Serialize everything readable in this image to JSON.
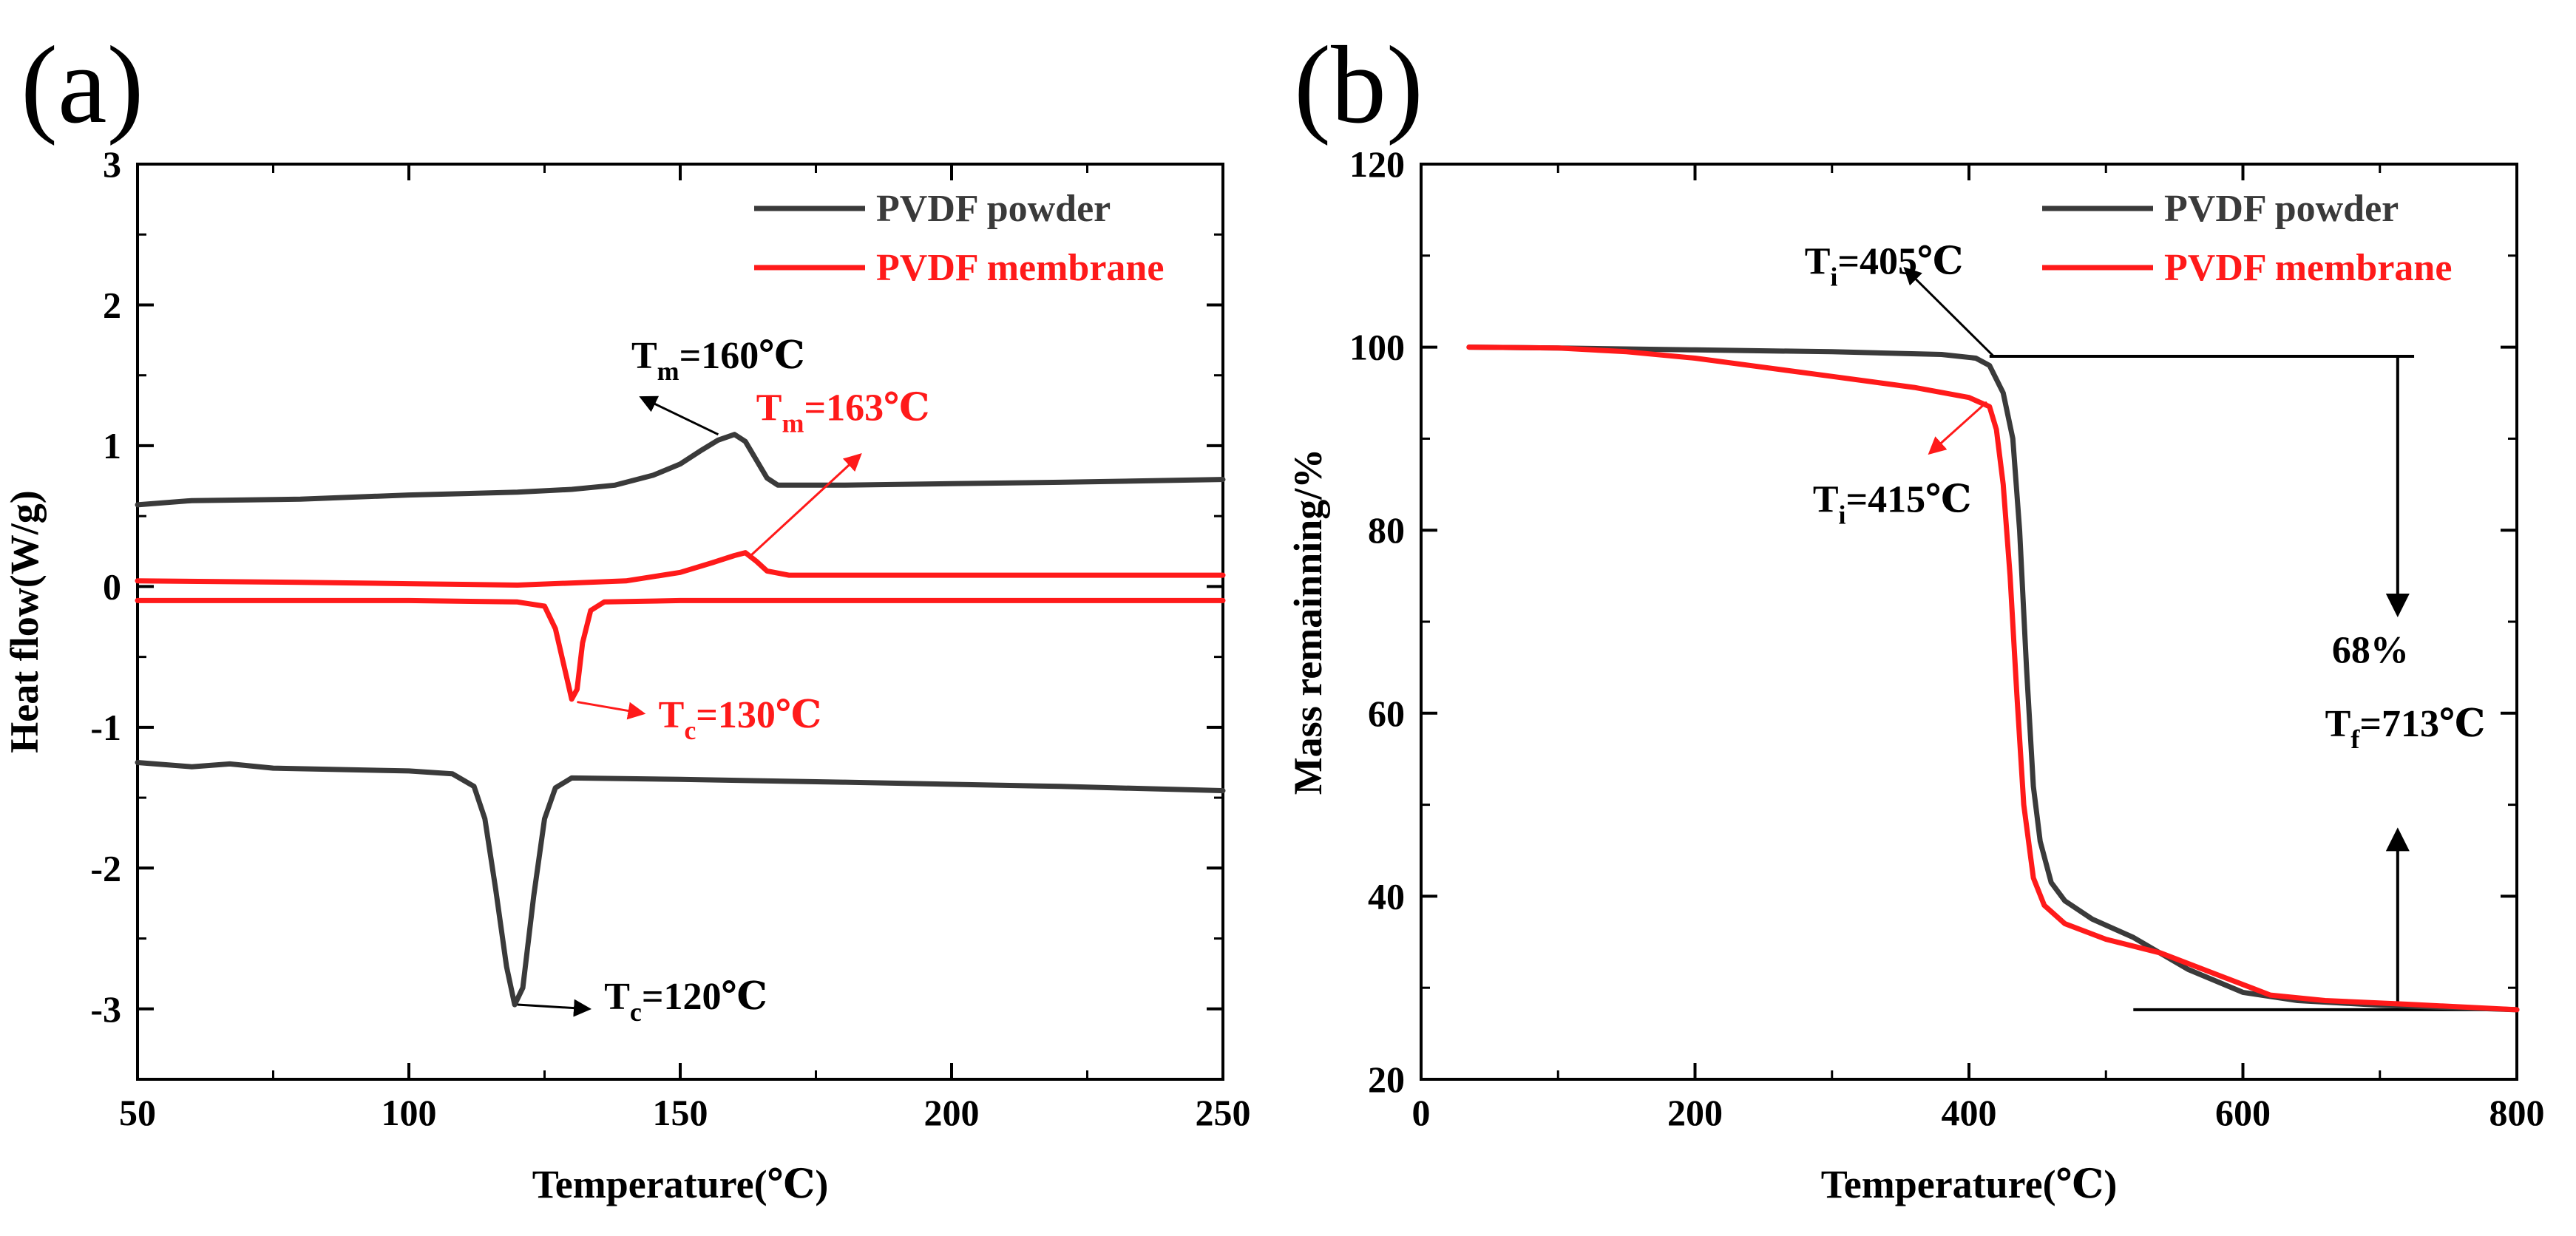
{
  "figure": {
    "panel_a_label": "(a)",
    "panel_b_label": "(b)"
  },
  "colors": {
    "powder": "#3a3a3a",
    "membrane": "#ff1a1a",
    "axis": "#000000",
    "annotation": "#000000"
  },
  "chart_data": [
    {
      "id": "dsc",
      "panel": "(a)",
      "type": "line",
      "xlabel": "Temperature(℃)",
      "ylabel": "Heat flow(W/g)",
      "xlim": [
        50,
        250
      ],
      "ylim": [
        -3.5,
        3
      ],
      "xticks": [
        50,
        100,
        150,
        200,
        250
      ],
      "xtick_labels": [
        "50",
        "100",
        "150",
        "200",
        "250"
      ],
      "yticks": [
        -3,
        -2,
        -1,
        0,
        1,
        2,
        3
      ],
      "ytick_labels": [
        "-3",
        "-2",
        "-1",
        "0",
        "1",
        "2",
        "3"
      ],
      "legend": {
        "position": "top-right",
        "entries": [
          "PVDF powder",
          "PVDF membrane"
        ]
      },
      "series": [
        {
          "name": "PVDF powder",
          "curve": "heating",
          "color_key": "powder",
          "points": [
            [
              50,
              0.58
            ],
            [
              60,
              0.61
            ],
            [
              80,
              0.62
            ],
            [
              100,
              0.65
            ],
            [
              120,
              0.67
            ],
            [
              130,
              0.69
            ],
            [
              138,
              0.72
            ],
            [
              145,
              0.79
            ],
            [
              150,
              0.87
            ],
            [
              154,
              0.97
            ],
            [
              157,
              1.04
            ],
            [
              160,
              1.08
            ],
            [
              162,
              1.03
            ],
            [
              164,
              0.9
            ],
            [
              166,
              0.77
            ],
            [
              168,
              0.72
            ],
            [
              180,
              0.72
            ],
            [
              200,
              0.73
            ],
            [
              220,
              0.74
            ],
            [
              250,
              0.76
            ]
          ]
        },
        {
          "name": "PVDF powder",
          "curve": "cooling",
          "color_key": "powder",
          "points": [
            [
              50,
              -1.25
            ],
            [
              60,
              -1.28
            ],
            [
              67,
              -1.26
            ],
            [
              75,
              -1.29
            ],
            [
              100,
              -1.31
            ],
            [
              108,
              -1.33
            ],
            [
              112,
              -1.42
            ],
            [
              114,
              -1.65
            ],
            [
              116,
              -2.15
            ],
            [
              118,
              -2.7
            ],
            [
              119.5,
              -2.97
            ],
            [
              121,
              -2.85
            ],
            [
              123,
              -2.2
            ],
            [
              125,
              -1.65
            ],
            [
              127,
              -1.43
            ],
            [
              130,
              -1.36
            ],
            [
              150,
              -1.37
            ],
            [
              180,
              -1.39
            ],
            [
              220,
              -1.42
            ],
            [
              250,
              -1.45
            ]
          ]
        },
        {
          "name": "PVDF membrane",
          "curve": "heating",
          "color_key": "membrane",
          "points": [
            [
              50,
              0.04
            ],
            [
              80,
              0.03
            ],
            [
              100,
              0.02
            ],
            [
              120,
              0.01
            ],
            [
              140,
              0.04
            ],
            [
              150,
              0.1
            ],
            [
              156,
              0.17
            ],
            [
              160,
              0.22
            ],
            [
              162,
              0.24
            ],
            [
              164,
              0.18
            ],
            [
              166,
              0.11
            ],
            [
              170,
              0.08
            ],
            [
              200,
              0.08
            ],
            [
              250,
              0.08
            ]
          ]
        },
        {
          "name": "PVDF membrane",
          "curve": "cooling",
          "color_key": "membrane",
          "points": [
            [
              50,
              -0.1
            ],
            [
              100,
              -0.1
            ],
            [
              120,
              -0.11
            ],
            [
              125,
              -0.14
            ],
            [
              127,
              -0.3
            ],
            [
              128.5,
              -0.55
            ],
            [
              130,
              -0.8
            ],
            [
              131,
              -0.73
            ],
            [
              132,
              -0.4
            ],
            [
              133.5,
              -0.17
            ],
            [
              136,
              -0.11
            ],
            [
              150,
              -0.1
            ],
            [
              200,
              -0.1
            ],
            [
              250,
              -0.1
            ]
          ]
        }
      ],
      "annotations": [
        {
          "sym": "T",
          "sub": "m",
          "val": "=160℃",
          "color_key": "annotation",
          "anchor": [
            141,
            1.55
          ],
          "arrow": [
            [
              157,
              1.08
            ],
            [
              143,
              1.34
            ]
          ]
        },
        {
          "sym": "T",
          "sub": "m",
          "val": "=163℃",
          "color_key": "membrane",
          "anchor": [
            164,
            1.18
          ],
          "arrow": [
            [
              163,
              0.22
            ],
            [
              183,
              0.93
            ]
          ]
        },
        {
          "sym": "T",
          "sub": "c",
          "val": "=130℃",
          "color_key": "membrane",
          "anchor": [
            146,
            -1.0
          ],
          "arrow": [
            [
              131,
              -0.82
            ],
            [
              143,
              -0.9
            ]
          ]
        },
        {
          "sym": "T",
          "sub": "c",
          "val": "=120℃",
          "color_key": "annotation",
          "anchor": [
            136,
            -3.0
          ],
          "arrow": [
            [
              120,
              -2.97
            ],
            [
              133,
              -3.0
            ]
          ]
        }
      ]
    },
    {
      "id": "tga",
      "panel": "(b)",
      "type": "line",
      "xlabel": "Temperature(℃)",
      "ylabel": "Mass remainning/%",
      "xlim": [
        0,
        800
      ],
      "ylim": [
        20,
        120
      ],
      "xticks": [
        0,
        200,
        400,
        600,
        800
      ],
      "xtick_labels": [
        "0",
        "200",
        "400",
        "600",
        "800"
      ],
      "yticks": [
        20,
        40,
        60,
        80,
        100,
        120
      ],
      "ytick_labels": [
        "20",
        "40",
        "60",
        "80",
        "100",
        "120"
      ],
      "legend": {
        "position": "top-right",
        "entries": [
          "PVDF powder",
          "PVDF membrane"
        ]
      },
      "series": [
        {
          "name": "PVDF powder",
          "color_key": "powder",
          "points": [
            [
              35,
              100
            ],
            [
              100,
              99.9
            ],
            [
              200,
              99.7
            ],
            [
              300,
              99.5
            ],
            [
              380,
              99.2
            ],
            [
              405,
              98.8
            ],
            [
              415,
              98
            ],
            [
              425,
              95
            ],
            [
              432,
              90
            ],
            [
              437,
              80
            ],
            [
              442,
              65
            ],
            [
              447,
              52
            ],
            [
              452,
              46
            ],
            [
              460,
              41.5
            ],
            [
              470,
              39.5
            ],
            [
              490,
              37.5
            ],
            [
              520,
              35.5
            ],
            [
              560,
              32
            ],
            [
              600,
              29.5
            ],
            [
              640,
              28.6
            ],
            [
              700,
              28.1
            ],
            [
              760,
              27.8
            ],
            [
              800,
              27.6
            ]
          ]
        },
        {
          "name": "PVDF membrane",
          "color_key": "membrane",
          "points": [
            [
              35,
              100
            ],
            [
              100,
              99.9
            ],
            [
              150,
              99.5
            ],
            [
              200,
              98.8
            ],
            [
              250,
              97.8
            ],
            [
              300,
              96.8
            ],
            [
              360,
              95.6
            ],
            [
              400,
              94.5
            ],
            [
              415,
              93.5
            ],
            [
              420,
              91
            ],
            [
              425,
              85
            ],
            [
              430,
              75
            ],
            [
              435,
              62
            ],
            [
              440,
              50
            ],
            [
              447,
              42
            ],
            [
              455,
              39
            ],
            [
              470,
              37
            ],
            [
              500,
              35.3
            ],
            [
              540,
              33.8
            ],
            [
              580,
              31.5
            ],
            [
              620,
              29.2
            ],
            [
              660,
              28.6
            ],
            [
              720,
              28.2
            ],
            [
              800,
              27.6
            ]
          ]
        }
      ],
      "lines": [
        {
          "from": [
            415,
            99
          ],
          "to": [
            725,
            99
          ]
        },
        {
          "from": [
            520,
            27.6
          ],
          "to": [
            800,
            27.6
          ]
        }
      ],
      "arrows": [
        {
          "from": [
            713,
            99
          ],
          "to": [
            713,
            71
          ]
        },
        {
          "from": [
            713,
            27.6
          ],
          "to": [
            713,
            47
          ]
        }
      ],
      "annotations": [
        {
          "sym": "T",
          "sub": "i",
          "val": "=405℃",
          "color_key": "annotation",
          "anchor": [
            280,
            108
          ],
          "arrow": [
            [
              418,
              99
            ],
            [
              354,
              108.5
            ]
          ]
        },
        {
          "sym": "T",
          "sub": "i",
          "val": "=415℃",
          "color_key": "annotation",
          "anchor": [
            286,
            82
          ],
          "arrow": [
            [
              413,
              94
            ],
            [
              372,
              88.5
            ]
          ],
          "arrow_color_key": "membrane"
        },
        {
          "text": "68%",
          "color_key": "annotation",
          "anchor": [
            665,
            65.5
          ]
        },
        {
          "sym": "T",
          "sub": "f",
          "val": "=713℃",
          "color_key": "annotation",
          "anchor": [
            660,
            57.5
          ]
        }
      ]
    }
  ]
}
